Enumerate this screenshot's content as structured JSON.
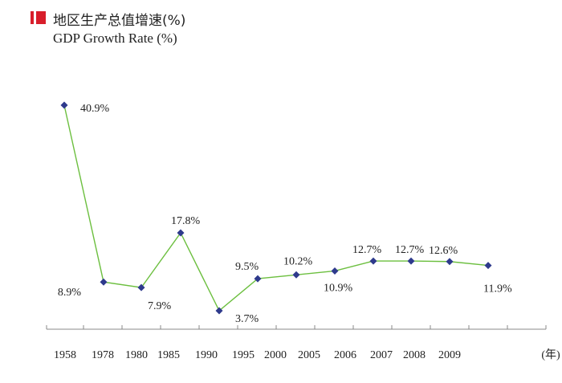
{
  "header": {
    "title_cn": "地区生产总值增速(%)",
    "title_en": "GDP Growth Rate (%)"
  },
  "colors": {
    "accent_red": "#d81e2b",
    "line": "#6cbf3f",
    "marker": "#2e3a8c",
    "axis": "#888888"
  },
  "chart_data": {
    "type": "line",
    "title": "地区生产总值增速(%) GDP Growth Rate (%)",
    "xlabel": "(年)",
    "ylabel": "",
    "categories": [
      "1958",
      "1978",
      "1980",
      "1985",
      "1990",
      "1995",
      "2000",
      "2005",
      "2006",
      "2007",
      "2008",
      "2009"
    ],
    "series": [
      {
        "name": "",
        "values": [
          40.9,
          8.9,
          7.9,
          17.8,
          3.7,
          9.5,
          10.2,
          10.9,
          12.7,
          12.7,
          12.6,
          11.9
        ],
        "labels": [
          "40.9%",
          "8.9%",
          "7.9%",
          "17.8%",
          "3.7%",
          "9.5%",
          "10.2%",
          "10.9%",
          "12.7%",
          "12.7%",
          "12.6%",
          "11.9%"
        ]
      }
    ],
    "ylim": [
      0,
      42
    ],
    "grid": false,
    "legend": "none"
  }
}
